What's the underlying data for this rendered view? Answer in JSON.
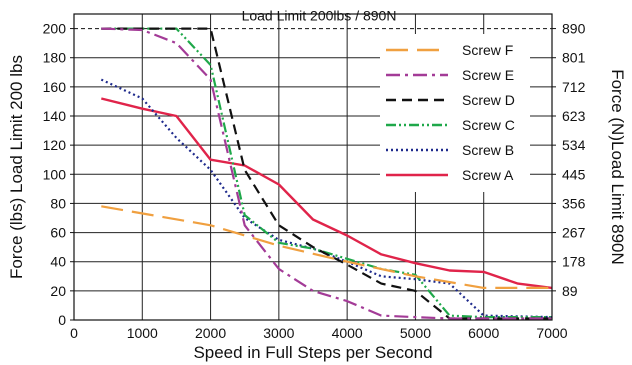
{
  "chart_data": {
    "type": "line",
    "title": "",
    "xlabel": "Speed in Full Steps per Second",
    "ylabel": "Force (lbs) Load Limit 200 lbs",
    "y2label": "Force (N)Load Limit 890N",
    "xlim": [
      0,
      7000
    ],
    "ylim": [
      0,
      210
    ],
    "xticks": [
      0,
      1000,
      2000,
      3000,
      4000,
      5000,
      6000,
      7000
    ],
    "yticks": [
      0,
      20,
      40,
      60,
      80,
      100,
      120,
      140,
      160,
      180,
      200
    ],
    "y2ticks": [
      "89",
      "178",
      "267",
      "356",
      "445",
      "534",
      "623",
      "712",
      "801",
      "890"
    ],
    "grid": true,
    "legend_position": "top-right",
    "annotation": {
      "text": "Load Limit 200lbs / 890N",
      "y": 200
    },
    "series": [
      {
        "name": "Screw F",
        "color": "#f0a040",
        "dash": "dash-long",
        "x": [
          400,
          2000,
          3000,
          4000,
          5000,
          6000,
          7000
        ],
        "y": [
          78,
          65,
          51,
          40,
          30,
          22,
          22
        ]
      },
      {
        "name": "Screw E",
        "color": "#a33b97",
        "dash": "dash-dot",
        "x": [
          400,
          1000,
          1500,
          2000,
          2500,
          3000,
          3500,
          4000,
          4500,
          5000,
          5500,
          6000,
          7000
        ],
        "y": [
          200,
          199,
          190,
          165,
          65,
          35,
          20,
          13,
          3,
          2,
          1,
          1,
          1
        ]
      },
      {
        "name": "Screw D",
        "color": "#111111",
        "dash": "dash",
        "x": [
          400,
          1000,
          2000,
          2500,
          3000,
          3500,
          4000,
          4500,
          5000,
          5500,
          6000,
          7000
        ],
        "y": [
          200,
          200,
          200,
          103,
          65,
          50,
          38,
          25,
          20,
          1,
          1,
          1
        ]
      },
      {
        "name": "Screw C",
        "color": "#1fa84a",
        "dash": "dash-dot-dot",
        "x": [
          400,
          1000,
          1500,
          2000,
          2500,
          3000,
          3500,
          4000,
          4500,
          5000,
          5500,
          6000,
          7000
        ],
        "y": [
          200,
          200,
          200,
          175,
          72,
          53,
          49,
          42,
          35,
          31,
          3,
          2,
          2
        ]
      },
      {
        "name": "Screw B",
        "color": "#1e2a8c",
        "dash": "dot",
        "x": [
          400,
          1000,
          1500,
          2000,
          2500,
          3000,
          3500,
          4000,
          4500,
          5000,
          5500,
          6000,
          7000
        ],
        "y": [
          165,
          152,
          125,
          103,
          70,
          55,
          49,
          40,
          30,
          28,
          25,
          3,
          2
        ]
      },
      {
        "name": "Screw A",
        "color": "#e0244a",
        "dash": "solid",
        "x": [
          400,
          1000,
          1500,
          2000,
          2500,
          3000,
          3500,
          4000,
          4500,
          5000,
          5500,
          6000,
          6500,
          7000
        ],
        "y": [
          152,
          145,
          140,
          110,
          106,
          93,
          69,
          58,
          45,
          39,
          34,
          33,
          25,
          22
        ]
      }
    ]
  }
}
